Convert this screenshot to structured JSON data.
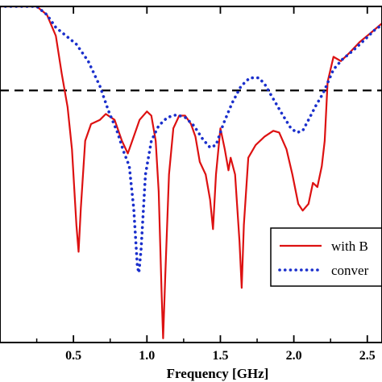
{
  "chart_data": {
    "type": "line",
    "title": "",
    "xlabel": "Frequency [GHz]",
    "ylabel": "",
    "xlim": [
      0.0,
      2.6
    ],
    "ylim": [
      -40,
      0
    ],
    "x_ticks": [
      0.5,
      1.0,
      1.5,
      2.0,
      2.5
    ],
    "x_tick_labels": [
      "0.5",
      "1.0",
      "1.5",
      "2.0",
      "2.5"
    ],
    "grid": false,
    "legend_position": "bottom-right",
    "reference_line": {
      "y": -10,
      "style": "dashed",
      "color": "#000000"
    },
    "series": [
      {
        "name": "with B",
        "color": "#dd1111",
        "style": "solid",
        "points": [
          [
            0.0,
            0.0
          ],
          [
            0.15,
            0.0
          ],
          [
            0.25,
            0.0
          ],
          [
            0.32,
            -1.0
          ],
          [
            0.38,
            -3.5
          ],
          [
            0.42,
            -8.0
          ],
          [
            0.46,
            -12.0
          ],
          [
            0.49,
            -17.0
          ],
          [
            0.52,
            -26.0
          ],
          [
            0.535,
            -29.2
          ],
          [
            0.55,
            -24.0
          ],
          [
            0.58,
            -16.0
          ],
          [
            0.62,
            -14.0
          ],
          [
            0.68,
            -13.5
          ],
          [
            0.72,
            -12.8
          ],
          [
            0.78,
            -13.5
          ],
          [
            0.83,
            -16.0
          ],
          [
            0.87,
            -17.5
          ],
          [
            0.9,
            -16.0
          ],
          [
            0.95,
            -13.5
          ],
          [
            1.0,
            -12.5
          ],
          [
            1.03,
            -13.0
          ],
          [
            1.06,
            -16.0
          ],
          [
            1.08,
            -22.0
          ],
          [
            1.1,
            -34.0
          ],
          [
            1.11,
            -39.5
          ],
          [
            1.125,
            -32.0
          ],
          [
            1.15,
            -20.0
          ],
          [
            1.18,
            -14.5
          ],
          [
            1.22,
            -13.0
          ],
          [
            1.26,
            -13.0
          ],
          [
            1.3,
            -14.0
          ],
          [
            1.33,
            -15.5
          ],
          [
            1.36,
            -18.5
          ],
          [
            1.4,
            -20.0
          ],
          [
            1.43,
            -23.0
          ],
          [
            1.45,
            -26.5
          ],
          [
            1.47,
            -20.0
          ],
          [
            1.5,
            -14.5
          ],
          [
            1.53,
            -17.0
          ],
          [
            1.555,
            -19.5
          ],
          [
            1.57,
            -18.0
          ],
          [
            1.6,
            -20.0
          ],
          [
            1.63,
            -28.0
          ],
          [
            1.645,
            -33.5
          ],
          [
            1.66,
            -26.0
          ],
          [
            1.69,
            -18.0
          ],
          [
            1.74,
            -16.5
          ],
          [
            1.8,
            -15.5
          ],
          [
            1.86,
            -14.8
          ],
          [
            1.9,
            -15.0
          ],
          [
            1.95,
            -17.0
          ],
          [
            1.99,
            -20.0
          ],
          [
            2.03,
            -23.5
          ],
          [
            2.06,
            -24.3
          ],
          [
            2.1,
            -23.5
          ],
          [
            2.13,
            -21.0
          ],
          [
            2.16,
            -21.5
          ],
          [
            2.19,
            -19.0
          ],
          [
            2.21,
            -16.0
          ],
          [
            2.23,
            -9.0
          ],
          [
            2.27,
            -6.0
          ],
          [
            2.32,
            -6.5
          ],
          [
            2.38,
            -5.5
          ],
          [
            2.45,
            -4.2
          ],
          [
            2.52,
            -3.2
          ],
          [
            2.6,
            -2.0
          ]
        ]
      },
      {
        "name": "conver",
        "color": "#1a2fcc",
        "style": "dotted",
        "points": [
          [
            0.0,
            0.0
          ],
          [
            0.15,
            0.0
          ],
          [
            0.25,
            0.0
          ],
          [
            0.32,
            -1.0
          ],
          [
            0.38,
            -2.5
          ],
          [
            0.45,
            -3.5
          ],
          [
            0.52,
            -4.5
          ],
          [
            0.6,
            -6.5
          ],
          [
            0.68,
            -9.5
          ],
          [
            0.74,
            -12.5
          ],
          [
            0.8,
            -15.0
          ],
          [
            0.84,
            -17.2
          ],
          [
            0.88,
            -19.0
          ],
          [
            0.91,
            -24.0
          ],
          [
            0.935,
            -31.0
          ],
          [
            0.945,
            -31.7
          ],
          [
            0.96,
            -29.0
          ],
          [
            0.99,
            -20.0
          ],
          [
            1.03,
            -16.0
          ],
          [
            1.08,
            -14.2
          ],
          [
            1.14,
            -13.2
          ],
          [
            1.2,
            -12.9
          ],
          [
            1.26,
            -13.2
          ],
          [
            1.32,
            -14.2
          ],
          [
            1.38,
            -15.8
          ],
          [
            1.43,
            -16.8
          ],
          [
            1.47,
            -16.5
          ],
          [
            1.52,
            -14.0
          ],
          [
            1.58,
            -11.5
          ],
          [
            1.64,
            -9.5
          ],
          [
            1.7,
            -8.5
          ],
          [
            1.76,
            -8.5
          ],
          [
            1.8,
            -9.2
          ],
          [
            1.86,
            -11.0
          ],
          [
            1.92,
            -12.8
          ],
          [
            1.98,
            -14.5
          ],
          [
            2.02,
            -15.0
          ],
          [
            2.06,
            -14.8
          ],
          [
            2.1,
            -13.5
          ],
          [
            2.15,
            -11.8
          ],
          [
            2.2,
            -10.3
          ],
          [
            2.27,
            -7.5
          ],
          [
            2.33,
            -6.3
          ],
          [
            2.4,
            -5.3
          ],
          [
            2.48,
            -4.0
          ],
          [
            2.55,
            -2.8
          ],
          [
            2.6,
            -2.2
          ]
        ]
      }
    ]
  }
}
